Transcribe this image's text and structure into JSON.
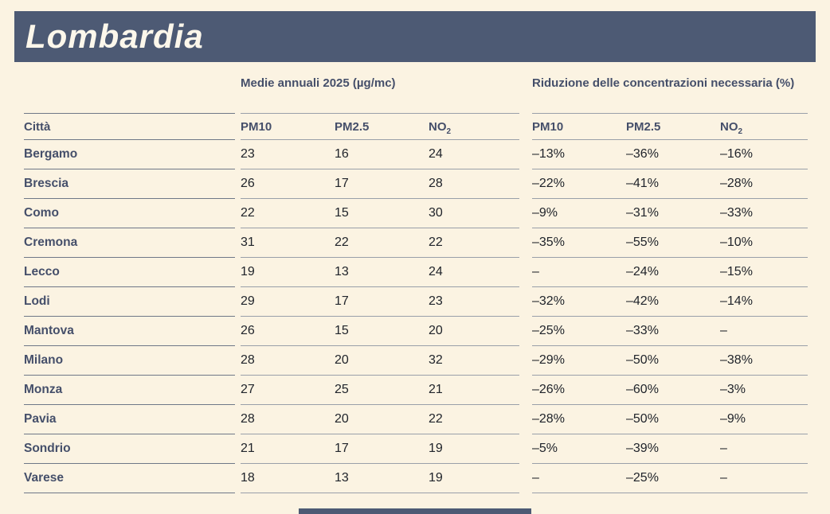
{
  "title": "Lombardia",
  "colors": {
    "background": "#FBF3E2",
    "banner": "#4D5A74",
    "heading_text": "#454F6A",
    "value_text": "#20242B"
  },
  "table": {
    "city_header": "Città",
    "groups": [
      {
        "title": "Medie annuali 2025 (µg/mc)",
        "cols": [
          {
            "key": "pm10",
            "text": "PM10",
            "sub": ""
          },
          {
            "key": "pm25",
            "text": "PM2.5",
            "sub": ""
          },
          {
            "key": "no2",
            "text": "NO",
            "sub": "2"
          }
        ]
      },
      {
        "title": "Riduzione delle concentrazioni necessaria (%)",
        "cols": [
          {
            "key": "pm10",
            "text": "PM10",
            "sub": ""
          },
          {
            "key": "pm25",
            "text": "PM2.5",
            "sub": ""
          },
          {
            "key": "no2",
            "text": "NO",
            "sub": "2"
          }
        ]
      }
    ],
    "rows": [
      {
        "city": "Bergamo",
        "avg": [
          "23",
          "16",
          "24"
        ],
        "red": [
          "–13%",
          "–36%",
          "–16%"
        ]
      },
      {
        "city": "Brescia",
        "avg": [
          "26",
          "17",
          "28"
        ],
        "red": [
          "–22%",
          "–41%",
          "–28%"
        ]
      },
      {
        "city": "Como",
        "avg": [
          "22",
          "15",
          "30"
        ],
        "red": [
          "–9%",
          "–31%",
          "–33%"
        ]
      },
      {
        "city": "Cremona",
        "avg": [
          "31",
          "22",
          "22"
        ],
        "red": [
          "–35%",
          "–55%",
          "–10%"
        ]
      },
      {
        "city": "Lecco",
        "avg": [
          "19",
          "13",
          "24"
        ],
        "red": [
          "–",
          "–24%",
          "–15%"
        ]
      },
      {
        "city": "Lodi",
        "avg": [
          "29",
          "17",
          "23"
        ],
        "red": [
          "–32%",
          "–42%",
          "–14%"
        ]
      },
      {
        "city": "Mantova",
        "avg": [
          "26",
          "15",
          "20"
        ],
        "red": [
          "–25%",
          "–33%",
          "–"
        ]
      },
      {
        "city": "Milano",
        "avg": [
          "28",
          "20",
          "32"
        ],
        "red": [
          "–29%",
          "–50%",
          "–38%"
        ]
      },
      {
        "city": "Monza",
        "avg": [
          "27",
          "25",
          "21"
        ],
        "red": [
          "–26%",
          "–60%",
          "–3%"
        ]
      },
      {
        "city": "Pavia",
        "avg": [
          "28",
          "20",
          "22"
        ],
        "red": [
          "–28%",
          "–50%",
          "–9%"
        ]
      },
      {
        "city": "Sondrio",
        "avg": [
          "21",
          "17",
          "19"
        ],
        "red": [
          "–5%",
          "–39%",
          "–"
        ]
      },
      {
        "city": "Varese",
        "avg": [
          "18",
          "13",
          "19"
        ],
        "red": [
          "–",
          "–25%",
          "–"
        ]
      }
    ]
  }
}
